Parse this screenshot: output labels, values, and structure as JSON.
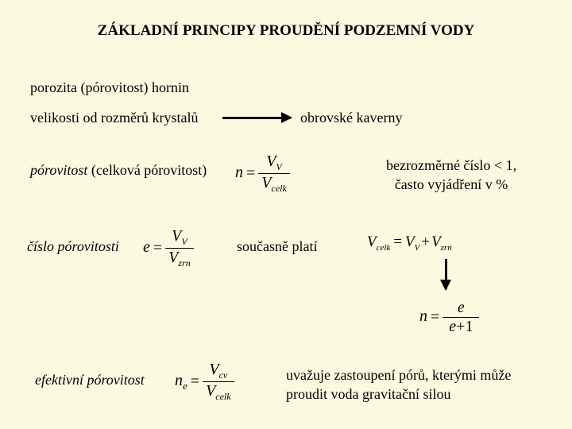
{
  "title": "ZÁKLADNÍ PRINCIPY PROUDĚNÍ PODZEMNÍ VODY",
  "line1": "porozita (pórovitost) hornin",
  "line2_left": "velikosti od rozměrů krystalů",
  "line2_right": "obrovské kaverny",
  "porosity": {
    "label_italic": "pórovitost",
    "label_rest": " (celková pórovitost)",
    "note_l1": "bezrozměrné číslo < 1,",
    "note_l2": "často vyjádření v %",
    "eq": {
      "lhs": "n",
      "num_v": "V",
      "num_sub": "V",
      "den_v": "V",
      "den_sub": "celk"
    }
  },
  "void_ratio": {
    "label": "číslo pórovitosti",
    "eq": {
      "lhs": "e",
      "num_v": "V",
      "num_sub": "V",
      "den_v": "V",
      "den_sub": "zrn"
    }
  },
  "concurrent": "současně platí",
  "vol_eq": {
    "V": "V",
    "celk": "celk",
    "VV": "V",
    "VVsub": "V",
    "Vzrn": "V",
    "zrn": "zrn"
  },
  "n_from_e": {
    "lhs": "n",
    "num": "e",
    "den_e": "e",
    "den_plus1": "+1"
  },
  "effective": {
    "label": "efektivní pórovitost",
    "eq": {
      "lhs_n": "n",
      "lhs_sub": "e",
      "num_v": "V",
      "num_sub": "cv",
      "den_v": "V",
      "den_sub": "celk"
    },
    "note_l1": "uvažuje zastoupení pórů, kterými může",
    "note_l2": "proudit voda gravitační silou"
  }
}
